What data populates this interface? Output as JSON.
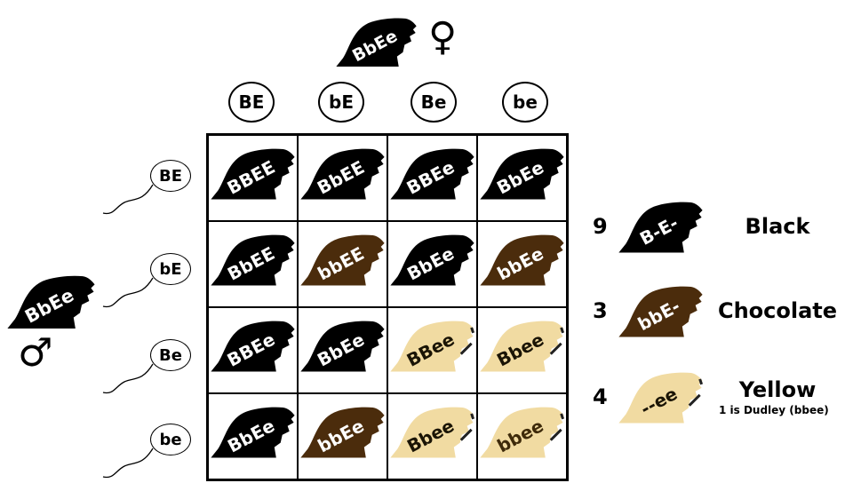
{
  "colors": {
    "black": "#000000",
    "chocolate": "#4b2c0c",
    "yellow": "#f1dba2",
    "yellow_text": "#1a1405",
    "bbee_text": "#3e2a0a"
  },
  "female": {
    "genotype": "BbEe",
    "symbol": "♀"
  },
  "male": {
    "genotype": "BbEe",
    "symbol": "♂"
  },
  "egg_alleles": [
    "BE",
    "bE",
    "Be",
    "be"
  ],
  "sperm_alleles": [
    "BE",
    "bE",
    "Be",
    "be"
  ],
  "grid": [
    [
      {
        "g": "BBEE",
        "c": "black"
      },
      {
        "g": "BbEE",
        "c": "black"
      },
      {
        "g": "BBEe",
        "c": "black"
      },
      {
        "g": "BbEe",
        "c": "black"
      }
    ],
    [
      {
        "g": "BbEE",
        "c": "black"
      },
      {
        "g": "bbEE",
        "c": "chocolate"
      },
      {
        "g": "BbEe",
        "c": "black"
      },
      {
        "g": "bbEe",
        "c": "chocolate"
      }
    ],
    [
      {
        "g": "BBEe",
        "c": "black"
      },
      {
        "g": "BbEe",
        "c": "black"
      },
      {
        "g": "BBee",
        "c": "yellow"
      },
      {
        "g": "Bbee",
        "c": "yellow"
      }
    ],
    [
      {
        "g": "BbEe",
        "c": "black"
      },
      {
        "g": "bbEe",
        "c": "chocolate"
      },
      {
        "g": "Bbee",
        "c": "yellow"
      },
      {
        "g": "bbee",
        "c": "yellow"
      }
    ]
  ],
  "legend": [
    {
      "count": "9",
      "genotype": "B-E-",
      "label": "Black",
      "color": "black"
    },
    {
      "count": "3",
      "genotype": "bbE-",
      "label": "Chocolate",
      "color": "chocolate"
    },
    {
      "count": "4",
      "genotype": "--ee",
      "label": "Yellow",
      "note": "1 is Dudley (bbee)",
      "color": "yellow"
    }
  ]
}
